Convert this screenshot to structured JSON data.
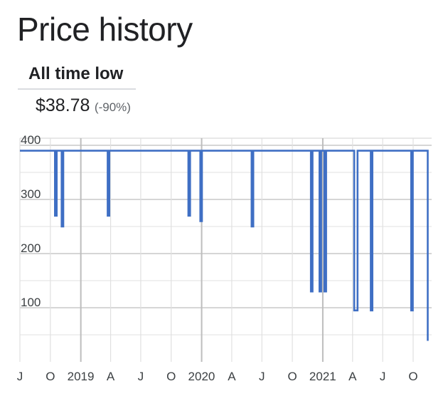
{
  "header": {
    "title": "Price history"
  },
  "tab": {
    "label": "All time low"
  },
  "all_time_low": {
    "price": "$38.78",
    "change": "(-90%)"
  },
  "colors": {
    "line": "#3f6fc4",
    "grid": "#e0e0e0",
    "major_grid": "#c8c8c8",
    "text": "#202124",
    "muted": "#5f6368"
  },
  "chart_data": {
    "type": "line",
    "step": true,
    "title": "",
    "xlabel": "",
    "ylabel": "",
    "xlim": [
      "2018-07-01",
      "2021-11-15"
    ],
    "ylim": [
      0,
      400
    ],
    "yticks": [
      100,
      200,
      300,
      400
    ],
    "xticks": [
      {
        "date": "2018-07-01",
        "label": "J"
      },
      {
        "date": "2018-10-01",
        "label": "O"
      },
      {
        "date": "2019-01-01",
        "label": "2019"
      },
      {
        "date": "2019-04-01",
        "label": "A"
      },
      {
        "date": "2019-07-01",
        "label": "J"
      },
      {
        "date": "2019-10-01",
        "label": "O"
      },
      {
        "date": "2020-01-01",
        "label": "2020"
      },
      {
        "date": "2020-04-01",
        "label": "A"
      },
      {
        "date": "2020-07-01",
        "label": "J"
      },
      {
        "date": "2020-10-01",
        "label": "O"
      },
      {
        "date": "2021-01-01",
        "label": "2021"
      },
      {
        "date": "2021-04-01",
        "label": "A"
      },
      {
        "date": "2021-07-01",
        "label": "J"
      },
      {
        "date": "2021-10-01",
        "label": "O"
      }
    ],
    "grid": true,
    "series": [
      {
        "points": [
          [
            "2018-07-01",
            390
          ],
          [
            "2018-10-15",
            390
          ],
          [
            "2018-10-15",
            270
          ],
          [
            "2018-10-20",
            270
          ],
          [
            "2018-10-20",
            390
          ],
          [
            "2018-11-04",
            390
          ],
          [
            "2018-11-04",
            250
          ],
          [
            "2018-11-09",
            250
          ],
          [
            "2018-11-09",
            390
          ],
          [
            "2019-03-23",
            390
          ],
          [
            "2019-03-23",
            270
          ],
          [
            "2019-03-28",
            270
          ],
          [
            "2019-03-28",
            390
          ],
          [
            "2019-11-22",
            390
          ],
          [
            "2019-11-22",
            270
          ],
          [
            "2019-11-27",
            270
          ],
          [
            "2019-11-27",
            390
          ],
          [
            "2019-12-28",
            390
          ],
          [
            "2019-12-28",
            260
          ],
          [
            "2020-01-02",
            260
          ],
          [
            "2020-01-02",
            390
          ],
          [
            "2020-05-31",
            390
          ],
          [
            "2020-05-31",
            250
          ],
          [
            "2020-06-05",
            250
          ],
          [
            "2020-06-05",
            390
          ],
          [
            "2020-11-26",
            390
          ],
          [
            "2020-11-26",
            130
          ],
          [
            "2020-12-01",
            130
          ],
          [
            "2020-12-01",
            390
          ],
          [
            "2020-12-22",
            390
          ],
          [
            "2020-12-22",
            130
          ],
          [
            "2020-12-27",
            130
          ],
          [
            "2020-12-27",
            390
          ],
          [
            "2021-01-06",
            390
          ],
          [
            "2021-01-06",
            130
          ],
          [
            "2021-01-11",
            130
          ],
          [
            "2021-01-11",
            390
          ],
          [
            "2021-04-06",
            390
          ],
          [
            "2021-04-06",
            95
          ],
          [
            "2021-04-16",
            95
          ],
          [
            "2021-04-16",
            390
          ],
          [
            "2021-05-26",
            390
          ],
          [
            "2021-05-26",
            95
          ],
          [
            "2021-05-31",
            95
          ],
          [
            "2021-05-31",
            390
          ],
          [
            "2021-09-25",
            390
          ],
          [
            "2021-09-25",
            95
          ],
          [
            "2021-09-30",
            95
          ],
          [
            "2021-09-30",
            390
          ],
          [
            "2021-11-14",
            390
          ],
          [
            "2021-11-14",
            38.78
          ]
        ]
      }
    ]
  }
}
